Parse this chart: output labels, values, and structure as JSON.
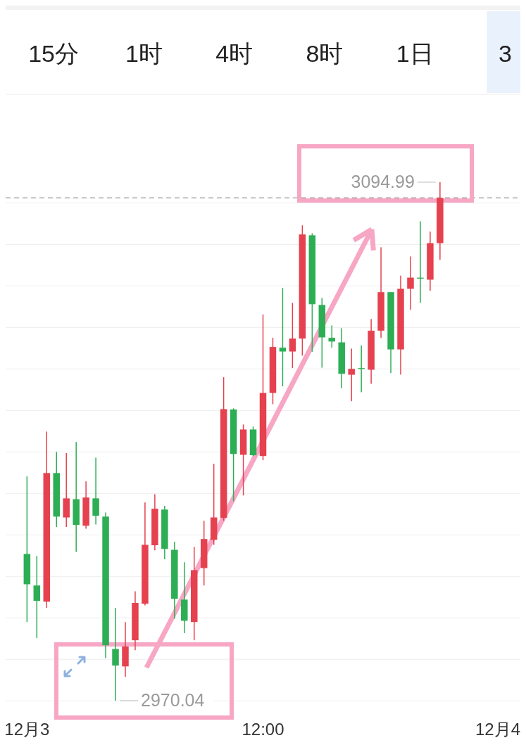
{
  "chart_data": {
    "type": "candlestick",
    "categories": [
      "12月3",
      null,
      null,
      null,
      null,
      null,
      null,
      null,
      null,
      null,
      null,
      null,
      null,
      null,
      null,
      null,
      null,
      null,
      null,
      null,
      null,
      null,
      null,
      null,
      "12:00",
      null,
      null,
      null,
      null,
      null,
      null,
      null,
      null,
      null,
      null,
      null,
      null,
      null,
      null,
      null,
      null,
      null,
      null,
      null,
      null,
      null,
      null,
      null,
      "12月4"
    ],
    "ohlc": [
      [
        3005.4,
        3024.1,
        2989.0,
        2998.1
      ],
      [
        2997.8,
        3004.9,
        2985.1,
        2994.1
      ],
      [
        2993.9,
        3034.9,
        2992.4,
        3024.9
      ],
      [
        3024.9,
        3030.0,
        3011.9,
        3014.4
      ],
      [
        3014.2,
        3029.7,
        3011.9,
        3018.8
      ],
      [
        3018.6,
        3032.4,
        3005.9,
        3012.4
      ],
      [
        3012.2,
        3022.9,
        3011.5,
        3019.0
      ],
      [
        3018.8,
        3028.6,
        3012.5,
        3014.6
      ],
      [
        3014.4,
        3015.4,
        2980.3,
        2983.4
      ],
      [
        2982.5,
        2992.4,
        2970.04,
        2978.5
      ],
      [
        2978.3,
        2989.0,
        2975.8,
        2983.1
      ],
      [
        2984.6,
        2996.4,
        2982.2,
        2993.6
      ],
      [
        2993.4,
        3017.8,
        2993.0,
        3007.6
      ],
      [
        3007.5,
        3019.8,
        3006.3,
        3016.3
      ],
      [
        3016.1,
        3017.0,
        3004.1,
        3006.6
      ],
      [
        3006.4,
        3008.3,
        2989.8,
        2994.6
      ],
      [
        2994.4,
        3003.4,
        2986.3,
        2989.3
      ],
      [
        2989.0,
        3007.1,
        2984.6,
        3001.5
      ],
      [
        3002.0,
        3013.4,
        2997.8,
        3009.0
      ],
      [
        3008.8,
        3027.1,
        3007.6,
        3014.2
      ],
      [
        3014.1,
        3048.0,
        3013.4,
        3040.3
      ],
      [
        3040.2,
        3040.5,
        3018.1,
        3029.5
      ],
      [
        3029.3,
        3036.6,
        3019.5,
        3035.4
      ],
      [
        3035.4,
        3036.1,
        3029.0,
        3029.2
      ],
      [
        3029.0,
        3063.1,
        3028.0,
        3044.2
      ],
      [
        3044.2,
        3057.5,
        3041.5,
        3055.3
      ],
      [
        3055.1,
        3069.5,
        3045.8,
        3054.2
      ],
      [
        3054.2,
        3065.9,
        3050.2,
        3057.3
      ],
      [
        3057.3,
        3084.6,
        3053.2,
        3082.4
      ],
      [
        3082.2,
        3082.7,
        3054.1,
        3065.6
      ],
      [
        3065.4,
        3067.1,
        3050.3,
        3057.6
      ],
      [
        3057.5,
        3060.5,
        3055.1,
        3056.6
      ],
      [
        3056.4,
        3059.8,
        3045.3,
        3048.8
      ],
      [
        3048.6,
        3054.9,
        3042.2,
        3050.0
      ],
      [
        3050.2,
        3055.6,
        3044.4,
        3050.0
      ],
      [
        3049.8,
        3062.0,
        3046.4,
        3059.2
      ],
      [
        3059.2,
        3079.3,
        3057.5,
        3068.5
      ],
      [
        3068.5,
        3068.5,
        3049.0,
        3054.7
      ],
      [
        3054.7,
        3072.5,
        3048.6,
        3069.3
      ],
      [
        3069.3,
        3077.1,
        3064.2,
        3072.0
      ],
      [
        3072.0,
        3085.6,
        3065.9,
        3071.9
      ],
      [
        3071.5,
        3083.1,
        3068.8,
        3080.3
      ],
      [
        3080.3,
        3094.99,
        3076.3,
        3091.2
      ],
      null,
      null,
      null,
      null,
      null,
      null
    ],
    "colors": [
      "#2dae55",
      "#2dae55",
      "#e5414f",
      "#2dae55",
      "#e5414f",
      "#2dae55",
      "#e5414f",
      "#2dae55",
      "#2dae55",
      "#2dae55",
      "#e5414f",
      "#e5414f",
      "#e5414f",
      "#e5414f",
      "#2dae55",
      "#2dae55",
      "#2dae55",
      "#e5414f",
      "#e5414f",
      "#e5414f",
      "#e5414f",
      "#2dae55",
      "#e5414f",
      "#2dae55",
      "#e5414f",
      "#e5414f",
      "#2dae55",
      "#e5414f",
      "#e5414f",
      "#2dae55",
      "#2dae55",
      "#2dae55",
      "#2dae55",
      "#e5414f",
      "#2dae55",
      "#e5414f",
      "#e5414f",
      "#2dae55",
      "#e5414f",
      "#e5414f",
      "#2dae55",
      "#e5414f",
      "#e5414f",
      null,
      null,
      null,
      null,
      null,
      null
    ],
    "yticks": [
      {
        "value": 2970,
        "label": null
      },
      {
        "value": 2980,
        "label": null
      },
      {
        "value": 2990,
        "label": null
      },
      {
        "value": 3000,
        "label": null
      },
      {
        "value": 3010,
        "label": null
      },
      {
        "value": 3020,
        "label": null
      },
      {
        "value": 3030,
        "label": null
      },
      {
        "value": 3040,
        "label": null
      },
      {
        "value": 3050,
        "label": null
      },
      {
        "value": 3060,
        "label": null
      },
      {
        "value": 3070,
        "label": null
      },
      {
        "value": 3080,
        "label": null
      },
      {
        "value": 3090,
        "label": null
      }
    ],
    "grid": "y",
    "tick_labels": "x",
    "ref_lines": [
      {
        "axis": "y",
        "value": 3091.2,
        "color": "#aaaaaa",
        "line_style": "dashed"
      }
    ],
    "annotations": [
      "15分",
      "1时",
      "4时",
      "8时",
      "1日",
      "3",
      "3094.99",
      "2970.04"
    ]
  }
}
